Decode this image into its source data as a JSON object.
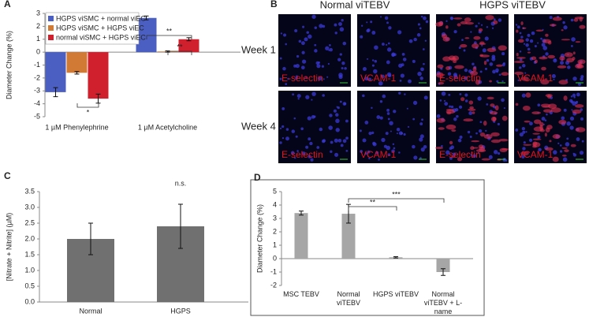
{
  "chart_data": [
    {
      "type": "bar",
      "panel": "A",
      "y_label": "Diameter Change (%)",
      "categories": [
        "1 µM Phenylephrine",
        "1 µM Acetylcholine"
      ],
      "series": [
        {
          "name": "HGPS viSMC + normal viEC",
          "color": "#4a5fc1",
          "values": [
            -3.1,
            2.65
          ],
          "errors": [
            0.35,
            0.15
          ]
        },
        {
          "name": "HGPS viSMC + HGPS viEC",
          "color": "#d07a35",
          "values": [
            -1.6,
            0.05
          ],
          "errors": [
            0.1,
            0.05
          ]
        },
        {
          "name": "normal viSMC + HGPS viEC",
          "color": "#d0202e",
          "values": [
            -3.6,
            1.0
          ],
          "errors": [
            0.35,
            0.12
          ]
        }
      ],
      "ylim": [
        -5,
        3
      ],
      "yticks": [
        -5,
        -4,
        -3,
        -2,
        -1,
        0,
        1,
        2,
        3
      ],
      "annotations": [
        "*",
        "**",
        "**"
      ]
    },
    {
      "type": "bar",
      "panel": "C",
      "y_label": "[Nitrate + Nitrite] (µM)",
      "categories": [
        "Normal",
        "HGPS"
      ],
      "values": [
        2.0,
        2.4
      ],
      "errors": [
        0.5,
        0.7
      ],
      "color": "#707070",
      "ylim": [
        0,
        3.5
      ],
      "yticks": [
        {
          "value": 0,
          "label": "0.0"
        },
        {
          "value": 0.5,
          "label": "0.5"
        },
        {
          "value": 1,
          "label": "1.0"
        },
        {
          "value": 1.5,
          "label": "1.5"
        },
        {
          "value": 2,
          "label": "2.0"
        },
        {
          "value": 2.5,
          "label": "2.5"
        },
        {
          "value": 3,
          "label": "3.0"
        },
        {
          "value": 3.5,
          "label": "3.5"
        }
      ],
      "annotations": [
        "n.s."
      ]
    },
    {
      "type": "bar",
      "panel": "D",
      "y_label": "Diameter Change (%)",
      "categories": [
        "MSC TEBV",
        "Normal viTEBV",
        "HGPS viTEBV",
        "Normal viTEBV + L-name"
      ],
      "values": [
        3.4,
        3.35,
        0.1,
        -1.0
      ],
      "errors": [
        0.15,
        0.7,
        0.05,
        0.25
      ],
      "color": "#a6a6a6",
      "ylim": [
        -2,
        5
      ],
      "yticks": [
        -2,
        -1,
        0,
        1,
        2,
        3,
        4,
        5
      ],
      "annotations": [
        "***",
        "**"
      ]
    }
  ],
  "image_panel": {
    "panel": "B",
    "column_headers": [
      "Normal viTEBV",
      "HGPS viTEBV"
    ],
    "row_labels": [
      "Week 1",
      "Week 4"
    ],
    "stain_labels": [
      [
        "E-selectin",
        "VCAM-1",
        "E-selectin",
        "VCAM-1"
      ],
      [
        "E-selectin",
        "VCAM-1",
        "E-selectin",
        "VCAM-1"
      ]
    ]
  }
}
